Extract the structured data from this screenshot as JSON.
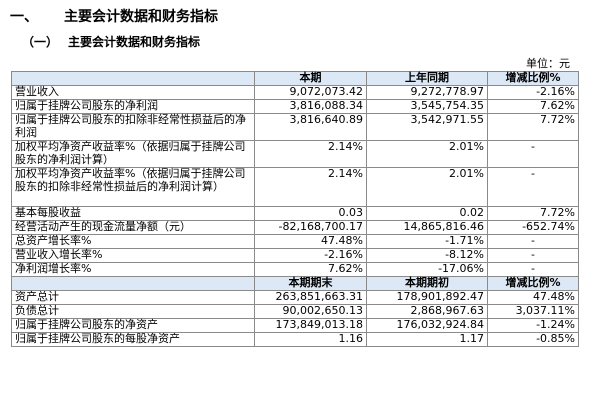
{
  "heading": {
    "number": "一、",
    "title": "主要会计数据和财务指标"
  },
  "subheading": {
    "number": "（一）",
    "title": "主要会计数据和财务指标"
  },
  "unit_label": "单位：元",
  "table1": {
    "headers": [
      "",
      "本期",
      "上年同期",
      "增减比例%"
    ],
    "rows": [
      [
        "营业收入",
        "9,072,073.42",
        "9,272,778.97",
        "-2.16%"
      ],
      [
        "归属于挂牌公司股东的净利润",
        "3,816,088.34",
        "3,545,754.35",
        "7.62%"
      ],
      [
        "归属于挂牌公司股东的扣除非经常性损益后的净利润",
        "3,816,640.89",
        "3,542,971.55",
        "7.72%"
      ],
      [
        "加权平均净资产收益率%（依据归属于挂牌公司股东的净利润计算）",
        "2.14%",
        "2.01%",
        "-"
      ],
      [
        "加权平均净资产收益率%（依据归属于挂牌公司股东的扣除非经常性损益后的净利润计算）",
        "2.14%",
        "2.01%",
        "-"
      ],
      [
        "基本每股收益",
        "0.03",
        "0.02",
        "7.72%"
      ],
      [
        "经营活动产生的现金流量净额（元）",
        "-82,168,700.17",
        "14,865,816.46",
        "-652.74%"
      ],
      [
        "总资产增长率%",
        "47.48%",
        "-1.71%",
        "-"
      ],
      [
        "营业收入增长率%",
        "-2.16%",
        "-8.12%",
        "-"
      ],
      [
        "净利润增长率%",
        "7.62%",
        "-17.06%",
        "-"
      ]
    ]
  },
  "table2": {
    "headers": [
      "",
      "本期期末",
      "本期期初",
      "增减比例%"
    ],
    "rows": [
      [
        "资产总计",
        "263,851,663.31",
        "178,901,892.47",
        "47.48%"
      ],
      [
        "负债总计",
        "90,002,650.13",
        "2,868,967.63",
        "3,037.11%"
      ],
      [
        "归属于挂牌公司股东的净资产",
        "173,849,013.18",
        "176,032,924.84",
        "-1.24%"
      ],
      [
        "归属于挂牌公司股东的每股净资产",
        "1.16",
        "1.17",
        "-0.85%"
      ]
    ]
  }
}
